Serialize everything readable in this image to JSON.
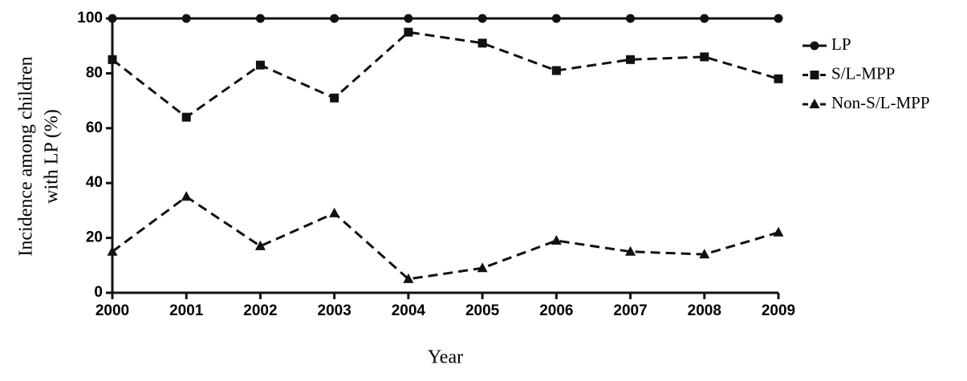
{
  "chart_data": {
    "type": "line",
    "x_label": "Year",
    "y_label": [
      "Incidence among children",
      "with LP (%)"
    ],
    "x": [
      2000,
      2001,
      2002,
      2003,
      2004,
      2005,
      2006,
      2007,
      2008,
      2009
    ],
    "xlim": [
      2000,
      2009
    ],
    "xticks": [
      2000,
      2001,
      2002,
      2003,
      2004,
      2005,
      2006,
      2007,
      2008,
      2009
    ],
    "ylim": [
      0,
      100
    ],
    "yticks": [
      0,
      20,
      40,
      60,
      80,
      100
    ],
    "grid": false,
    "legend": "right",
    "series": [
      {
        "name": "LP",
        "color": "#111111",
        "marker": "circle",
        "dashed": false,
        "values": [
          100,
          100,
          100,
          100,
          100,
          100,
          100,
          100,
          100,
          100
        ]
      },
      {
        "name": "S/L-MPP",
        "color": "#111111",
        "marker": "square",
        "dashed": true,
        "values": [
          85,
          64,
          83,
          71,
          95,
          91,
          81,
          85,
          86,
          78
        ]
      },
      {
        "name": "Non-S/L-MPP",
        "color": "#111111",
        "marker": "triangle",
        "dashed": true,
        "values": [
          15,
          35,
          17,
          29,
          5,
          9,
          19,
          15,
          14,
          22
        ]
      }
    ]
  }
}
